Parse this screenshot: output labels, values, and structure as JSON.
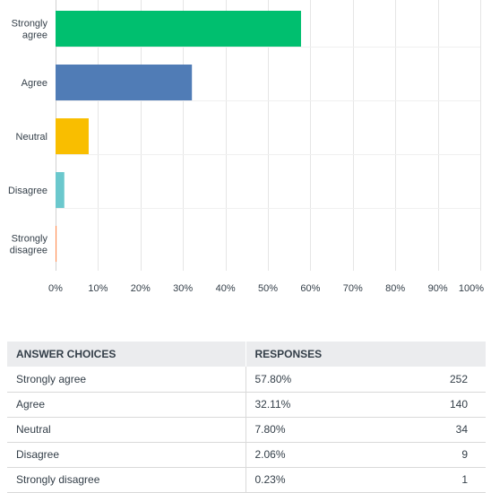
{
  "chart_data": {
    "type": "bar",
    "orientation": "horizontal",
    "categories": [
      "Strongly agree",
      "Agree",
      "Neutral",
      "Disagree",
      "Strongly disagree"
    ],
    "category_labels": [
      [
        "Strongly",
        "agree"
      ],
      [
        "Agree"
      ],
      [
        "Neutral"
      ],
      [
        "Disagree"
      ],
      [
        "Strongly",
        "disagree"
      ]
    ],
    "values": [
      57.8,
      32.11,
      7.8,
      2.06,
      0.23
    ],
    "colors": [
      "#00bf6f",
      "#507cb6",
      "#f9be00",
      "#6bc8cd",
      "#ff8b4f"
    ],
    "xlim": [
      0,
      100
    ],
    "x_ticks": [
      0,
      10,
      20,
      30,
      40,
      50,
      60,
      70,
      80,
      90,
      100
    ],
    "x_tick_labels": [
      "0%",
      "10%",
      "20%",
      "30%",
      "40%",
      "50%",
      "60%",
      "70%",
      "80%",
      "90%",
      "100%"
    ],
    "grid": true,
    "gridline_color": "#e5e5e5",
    "title": "",
    "xlabel": "",
    "ylabel": ""
  },
  "table": {
    "headers": {
      "choice": "ANSWER CHOICES",
      "responses": "RESPONSES"
    },
    "rows": [
      {
        "choice": "Strongly agree",
        "percent": "57.80%",
        "count": "252"
      },
      {
        "choice": "Agree",
        "percent": "32.11%",
        "count": "140"
      },
      {
        "choice": "Neutral",
        "percent": "7.80%",
        "count": "34"
      },
      {
        "choice": "Disagree",
        "percent": "2.06%",
        "count": "9"
      },
      {
        "choice": "Strongly disagree",
        "percent": "0.23%",
        "count": "1"
      }
    ]
  }
}
